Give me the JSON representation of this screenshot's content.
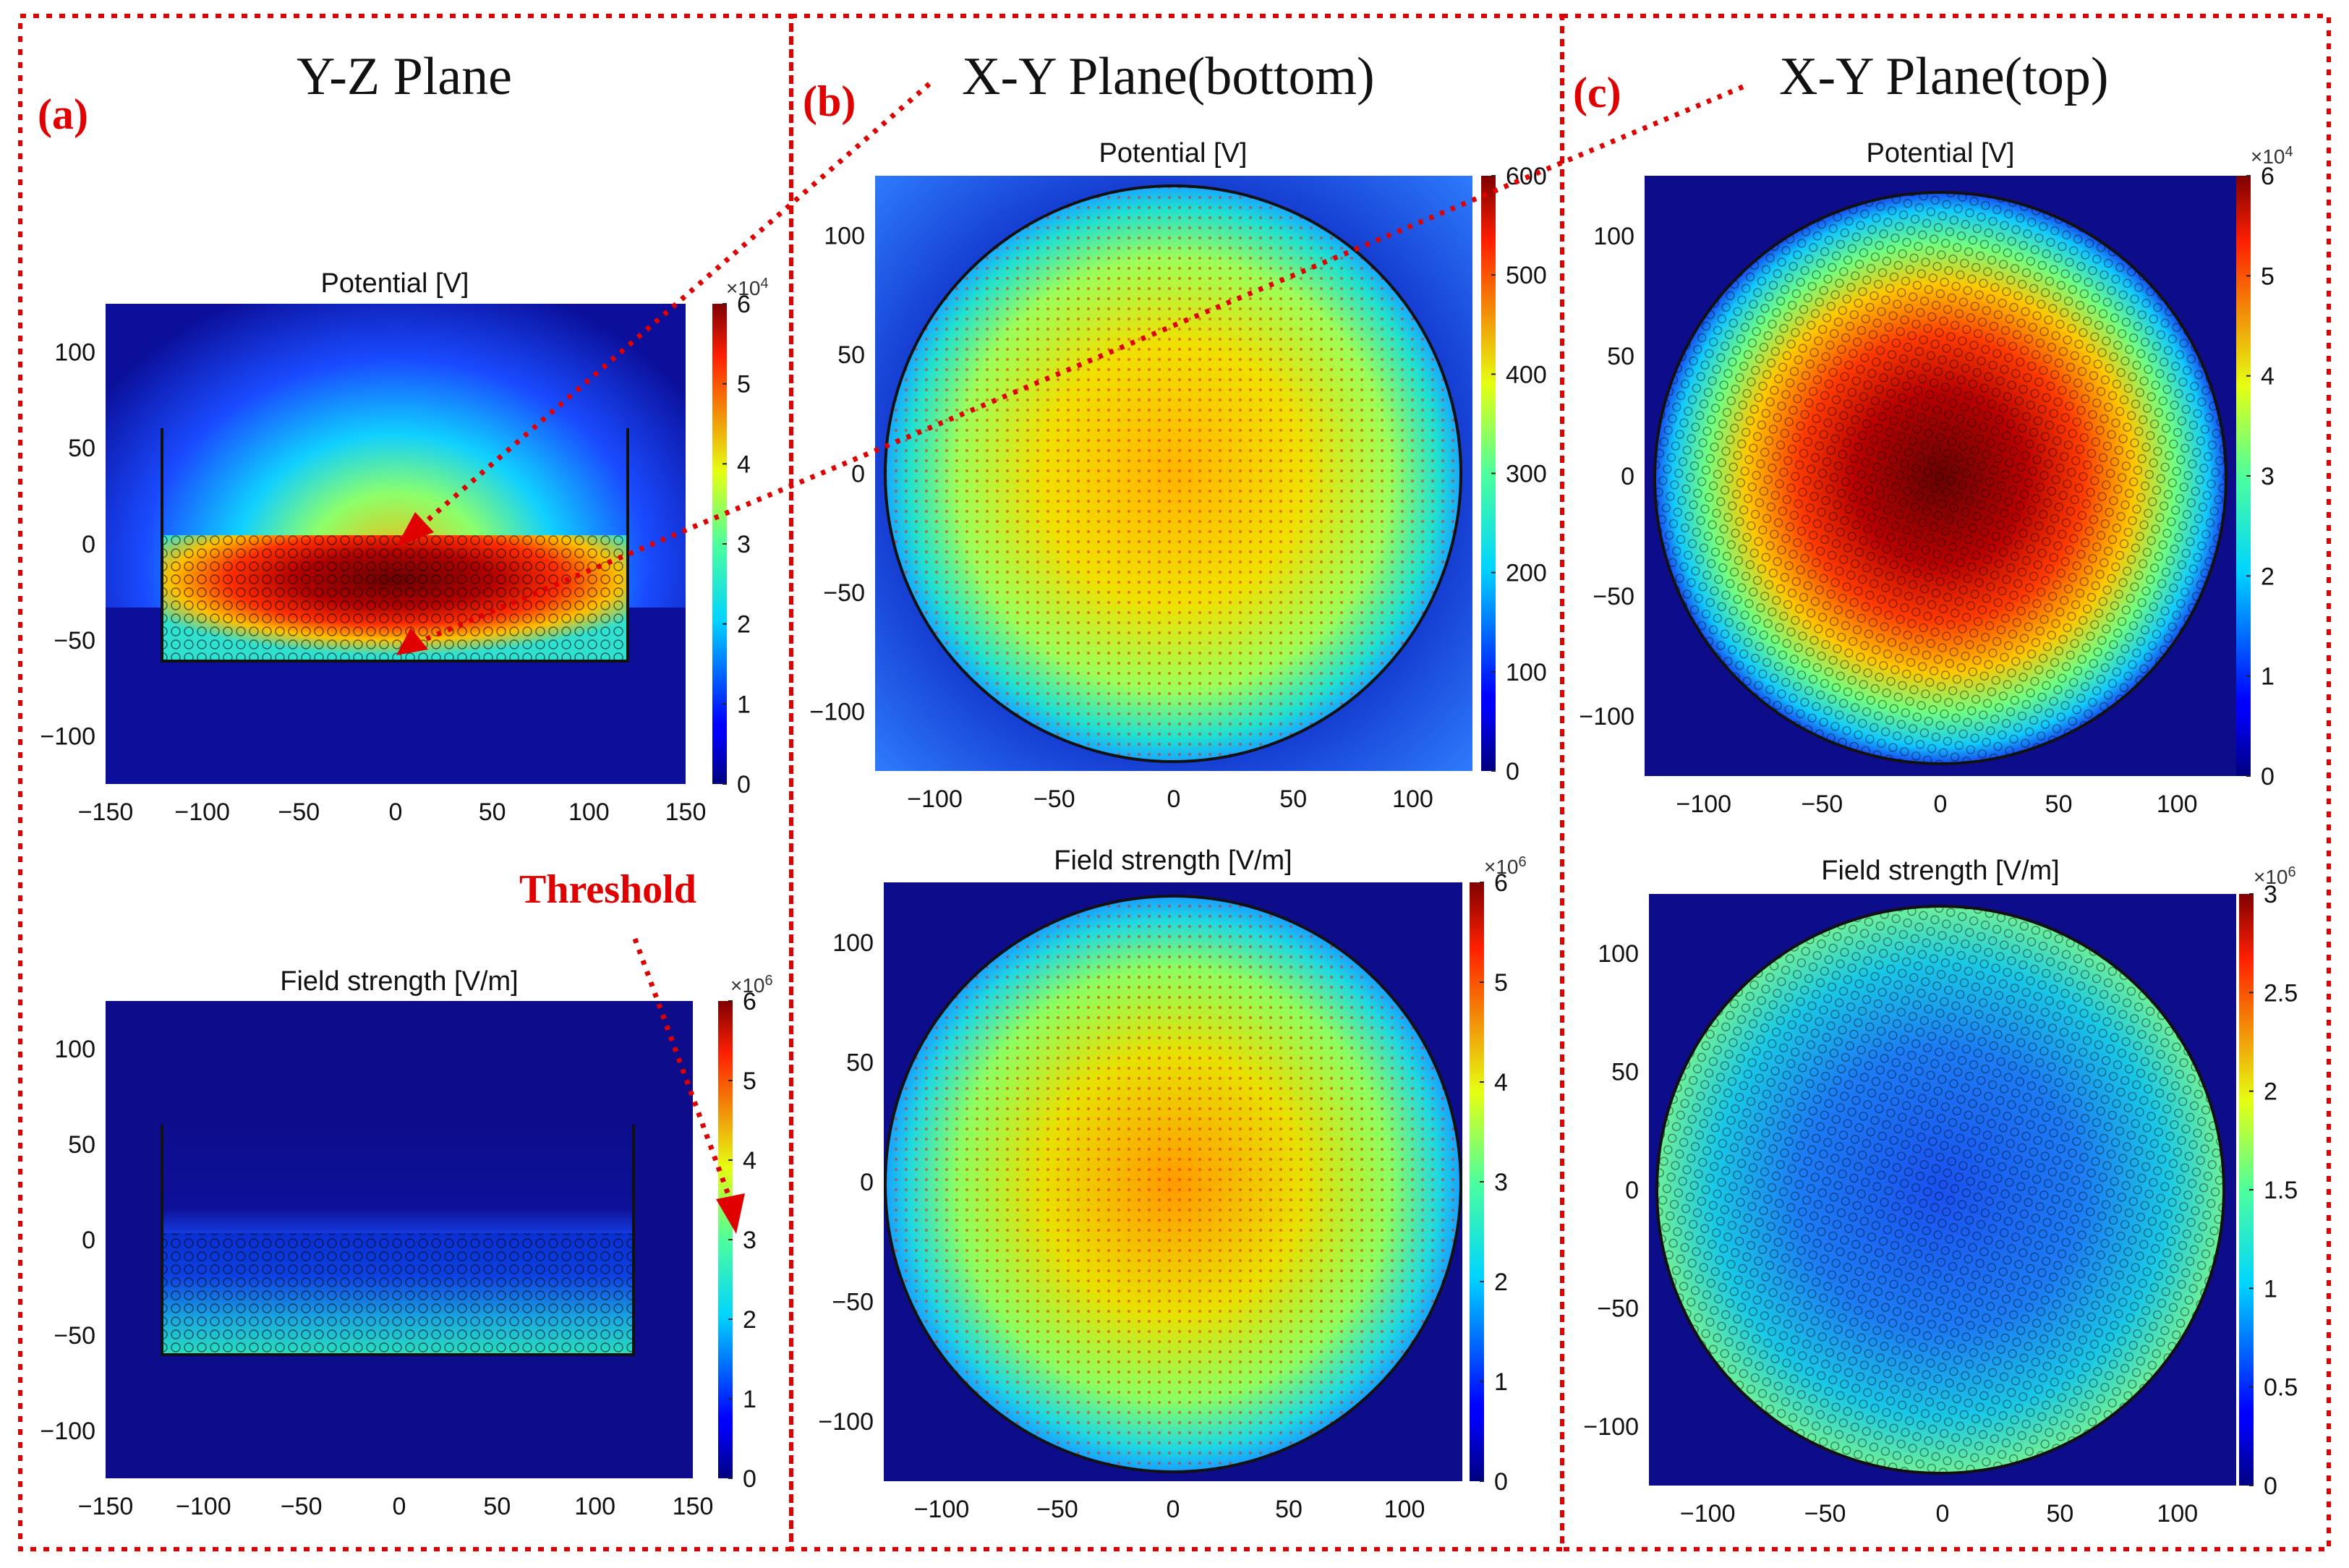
{
  "figure": {
    "panels": [
      {
        "letter": "(a)",
        "title": "Y-Z Plane"
      },
      {
        "letter": "(b)",
        "title": "X-Y Plane(bottom)"
      },
      {
        "letter": "(c)",
        "title": "X-Y Plane(top)"
      }
    ],
    "annotation": "Threshold",
    "colors": {
      "border": "#e00000",
      "arrow": "#e00000",
      "boundary": "#111111"
    }
  },
  "chart_data": [
    {
      "id": "a_potential",
      "type": "heatmap",
      "title": "Potential [V]",
      "plane": "Y-Z",
      "xlim": [
        -150,
        150
      ],
      "ylim": [
        -125,
        125
      ],
      "xticks": [
        "−150",
        "−100",
        "−50",
        "0",
        "50",
        "100",
        "150"
      ],
      "yticks": [
        "100",
        "50",
        "0",
        "−50",
        "−100"
      ],
      "colorbar": {
        "min": 0,
        "max": 6,
        "ticks": [
          "0",
          "1",
          "2",
          "3",
          "4",
          "5",
          "6"
        ],
        "exponent": "×10",
        "exponent_power": "4"
      },
      "field_peak": 60000
    },
    {
      "id": "a_field",
      "type": "heatmap",
      "title": "Field strength [V/m]",
      "plane": "Y-Z",
      "xlim": [
        -150,
        150
      ],
      "ylim": [
        -125,
        125
      ],
      "xticks": [
        "−150",
        "−100",
        "−50",
        "0",
        "50",
        "100",
        "150"
      ],
      "yticks": [
        "100",
        "50",
        "0",
        "−50",
        "−100"
      ],
      "colorbar": {
        "min": 0,
        "max": 6,
        "ticks": [
          "0",
          "1",
          "2",
          "3",
          "4",
          "5",
          "6"
        ],
        "exponent": "×10",
        "exponent_power": "6"
      },
      "threshold": 3
    },
    {
      "id": "b_potential",
      "type": "heatmap",
      "title": "Potential [V]",
      "plane": "X-Y bottom",
      "xlim": [
        -125,
        125
      ],
      "ylim": [
        -125,
        125
      ],
      "xticks": [
        "−100",
        "−50",
        "0",
        "50",
        "100"
      ],
      "yticks": [
        "100",
        "50",
        "0",
        "−50",
        "−100"
      ],
      "colorbar": {
        "min": 0,
        "max": 600,
        "ticks": [
          "0",
          "100",
          "200",
          "300",
          "400",
          "500",
          "600"
        ],
        "exponent": "",
        "exponent_power": ""
      }
    },
    {
      "id": "b_field",
      "type": "heatmap",
      "title": "Field strength [V/m]",
      "plane": "X-Y bottom",
      "xlim": [
        -125,
        125
      ],
      "ylim": [
        -125,
        125
      ],
      "xticks": [
        "−100",
        "−50",
        "0",
        "50",
        "100"
      ],
      "yticks": [
        "100",
        "50",
        "0",
        "−50",
        "−100"
      ],
      "colorbar": {
        "min": 0,
        "max": 6,
        "ticks": [
          "0",
          "1",
          "2",
          "3",
          "4",
          "5",
          "6"
        ],
        "exponent": "×10",
        "exponent_power": "6"
      }
    },
    {
      "id": "c_potential",
      "type": "heatmap",
      "title": "Potential [V]",
      "plane": "X-Y top",
      "xlim": [
        -125,
        125
      ],
      "ylim": [
        -125,
        125
      ],
      "xticks": [
        "−100",
        "−50",
        "0",
        "50",
        "100"
      ],
      "yticks": [
        "100",
        "50",
        "0",
        "−50",
        "−100"
      ],
      "colorbar": {
        "min": 0,
        "max": 6,
        "ticks": [
          "0",
          "1",
          "2",
          "3",
          "4",
          "5",
          "6"
        ],
        "exponent": "×10",
        "exponent_power": "4"
      }
    },
    {
      "id": "c_field",
      "type": "heatmap",
      "title": "Field strength [V/m]",
      "plane": "X-Y top",
      "xlim": [
        -125,
        125
      ],
      "ylim": [
        -125,
        125
      ],
      "xticks": [
        "−100",
        "−50",
        "0",
        "50",
        "100"
      ],
      "yticks": [
        "100",
        "50",
        "0",
        "−50",
        "−100"
      ],
      "colorbar": {
        "min": 0,
        "max": 3,
        "ticks": [
          "0",
          "0.5",
          "1",
          "1.5",
          "2",
          "2.5",
          "3"
        ],
        "exponent": "×10",
        "exponent_power": "6"
      }
    }
  ]
}
